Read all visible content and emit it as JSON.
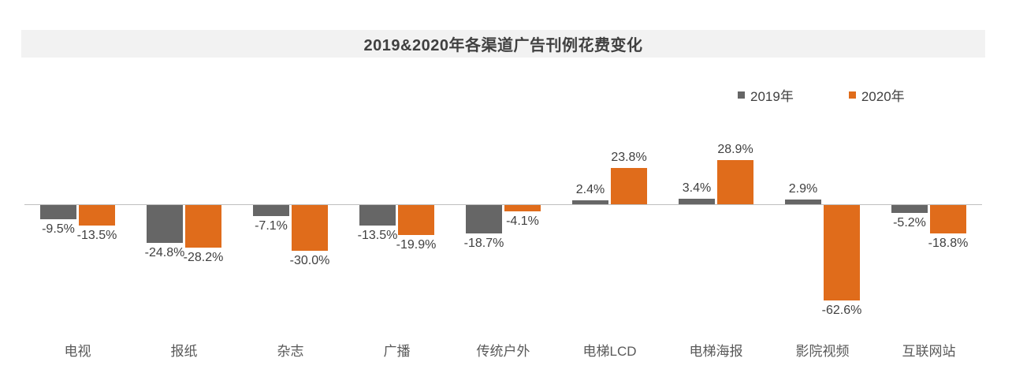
{
  "page": {
    "title": "2019&2020年各渠道广告刊例花费变化"
  },
  "legend": {
    "items": [
      {
        "label": "2019年"
      },
      {
        "label": "2020年"
      }
    ]
  },
  "chart_data": {
    "type": "bar",
    "title": "2019&2020年各渠道广告刊例花费变化",
    "categories": [
      "电视",
      "报纸",
      "杂志",
      "广播",
      "传统户外",
      "电梯LCD",
      "电梯海报",
      "影院视频",
      "互联网站"
    ],
    "series": [
      {
        "name": "2019年",
        "color": "#666666",
        "values": [
          -9.5,
          -24.8,
          -7.1,
          -13.5,
          -18.7,
          2.4,
          3.4,
          2.9,
          -5.2
        ]
      },
      {
        "name": "2020年",
        "color": "#E06C1B",
        "values": [
          -13.5,
          -28.2,
          -30.0,
          -19.9,
          -4.1,
          23.8,
          28.9,
          -62.6,
          -18.8
        ]
      }
    ],
    "value_suffix": "%",
    "data_labels": "outside_end",
    "ylim": [
      -70,
      35
    ],
    "grid": false,
    "legend_position": "top-right",
    "xlabel": "",
    "ylabel": ""
  },
  "colors": {
    "bar_2019": "#666666",
    "bar_2020": "#E06C1B",
    "title_text": "#404040",
    "value_label_text": "#404040",
    "category_text": "#595959",
    "axis_line": "#BFBFBF",
    "title_band_bg": "#F2F2F2"
  }
}
